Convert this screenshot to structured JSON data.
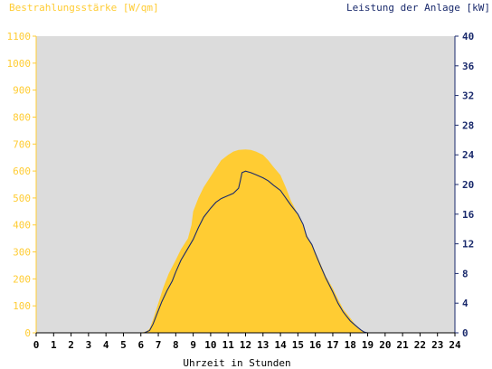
{
  "chart_data": {
    "type": "area",
    "left_axis_label": "Bestrahlungsstärke [W/qm]",
    "right_axis_label": "Leistung der Anlage [kW]",
    "xlabel": "Uhrzeit in Stunden",
    "xlim": [
      0,
      24
    ],
    "x_ticks": [
      0,
      1,
      2,
      3,
      4,
      5,
      6,
      7,
      8,
      9,
      10,
      11,
      12,
      13,
      14,
      15,
      16,
      17,
      18,
      19,
      20,
      21,
      22,
      23,
      24
    ],
    "y_left_lim": [
      0,
      1100
    ],
    "y_left_ticks": [
      0,
      100,
      200,
      300,
      400,
      500,
      600,
      700,
      800,
      900,
      1000,
      1100
    ],
    "y_right_lim": [
      0,
      40
    ],
    "y_right_ticks": [
      0,
      4,
      8,
      12,
      16,
      20,
      24,
      28,
      32,
      36,
      40
    ],
    "grid": false,
    "colors": {
      "plot_background": "#dcdcdc",
      "irradiance_fill": "#ffcc33",
      "power_line": "#1a2a6c",
      "left_axis": "#ffcc33",
      "right_axis": "#1a2a6c"
    },
    "irradiance": {
      "x": [
        0,
        6.0,
        6.3,
        6.5,
        6.7,
        7.0,
        7.3,
        7.6,
        8.0,
        8.3,
        8.7,
        8.9,
        9.0,
        9.3,
        9.6,
        10.0,
        10.3,
        10.6,
        11.0,
        11.3,
        11.6,
        12.0,
        12.3,
        12.6,
        13.0,
        13.3,
        13.6,
        14.0,
        14.3,
        14.6,
        15.0,
        15.3,
        15.6,
        16.0,
        16.3,
        16.6,
        17.0,
        17.3,
        17.6,
        18.0,
        18.3,
        18.6,
        18.8,
        19.0,
        24
      ],
      "values": [
        0,
        0,
        5,
        15,
        50,
        110,
        170,
        220,
        270,
        310,
        350,
        400,
        450,
        500,
        540,
        580,
        610,
        640,
        660,
        672,
        678,
        680,
        678,
        672,
        660,
        640,
        615,
        585,
        540,
        490,
        440,
        395,
        350,
        300,
        255,
        210,
        165,
        125,
        88,
        55,
        30,
        12,
        4,
        0,
        0
      ]
    },
    "power": {
      "x": [
        0,
        6.2,
        6.5,
        6.7,
        6.9,
        7.2,
        7.5,
        7.8,
        8.0,
        8.3,
        8.6,
        9.0,
        9.3,
        9.6,
        10.0,
        10.3,
        10.6,
        11.0,
        11.3,
        11.6,
        11.7,
        11.8,
        12.0,
        12.3,
        12.6,
        13.0,
        13.3,
        13.6,
        14.0,
        14.3,
        14.6,
        15.0,
        15.3,
        15.5,
        15.8,
        16.0,
        16.3,
        16.6,
        17.0,
        17.3,
        17.6,
        18.0,
        18.3,
        18.6,
        18.8,
        19.0,
        24
      ],
      "values": [
        0,
        0,
        0.3,
        1.2,
        2.4,
        4.2,
        5.7,
        7.0,
        8.2,
        9.8,
        11.0,
        12.6,
        14.2,
        15.6,
        16.8,
        17.6,
        18.1,
        18.5,
        18.8,
        19.5,
        20.5,
        21.6,
        21.8,
        21.6,
        21.3,
        20.9,
        20.5,
        19.9,
        19.2,
        18.2,
        17.2,
        16.0,
        14.6,
        13.0,
        11.9,
        10.7,
        9.0,
        7.4,
        5.5,
        4.0,
        2.8,
        1.6,
        1.0,
        0.4,
        0.1,
        0,
        0
      ]
    }
  }
}
